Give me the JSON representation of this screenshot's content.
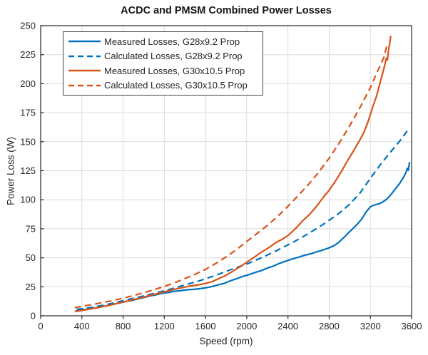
{
  "chart_data": {
    "type": "line",
    "title": "ACDC and PMSM Combined Power Losses",
    "xlabel": "Speed (rpm)",
    "ylabel": "Power Loss (W)",
    "xlim": [
      0,
      3600
    ],
    "ylim": [
      0,
      250
    ],
    "xticks": [
      0,
      400,
      800,
      1200,
      1600,
      2000,
      2400,
      2800,
      3200,
      3600
    ],
    "yticks": [
      0,
      25,
      50,
      75,
      100,
      125,
      150,
      175,
      200,
      225,
      250
    ],
    "grid": true,
    "legend_position": "top-left",
    "colors": {
      "axis": "#262626",
      "grid": "#dbdbdb",
      "background": "#ffffff",
      "blue": "#0072BD",
      "orange": "#D95319"
    },
    "series": [
      {
        "name": "Measured Losses, G28x9.2 Prop",
        "color": "#0072BD",
        "style": "solid",
        "points": [
          [
            340,
            4.2
          ],
          [
            400,
            5
          ],
          [
            460,
            5.9
          ],
          [
            520,
            6.6
          ],
          [
            580,
            7.7
          ],
          [
            640,
            8.5
          ],
          [
            700,
            9.9
          ],
          [
            760,
            10.9
          ],
          [
            820,
            12.3
          ],
          [
            880,
            13.1
          ],
          [
            940,
            14.5
          ],
          [
            1000,
            15.7
          ],
          [
            1060,
            17.1
          ],
          [
            1120,
            18.1
          ],
          [
            1180,
            19.5
          ],
          [
            1240,
            20.1
          ],
          [
            1300,
            21.1
          ],
          [
            1360,
            21.7
          ],
          [
            1420,
            22.4
          ],
          [
            1480,
            22.7
          ],
          [
            1540,
            23.3
          ],
          [
            1600,
            24.1
          ],
          [
            1660,
            25.1
          ],
          [
            1720,
            26.6
          ],
          [
            1780,
            27.9
          ],
          [
            1840,
            30.1
          ],
          [
            1900,
            31.9
          ],
          [
            1960,
            33.9
          ],
          [
            2020,
            35.4
          ],
          [
            2080,
            37.3
          ],
          [
            2140,
            38.9
          ],
          [
            2200,
            41.1
          ],
          [
            2260,
            42.9
          ],
          [
            2320,
            45.3
          ],
          [
            2380,
            47.1
          ],
          [
            2440,
            48.9
          ],
          [
            2500,
            50.4
          ],
          [
            2560,
            52.1
          ],
          [
            2620,
            53.4
          ],
          [
            2680,
            55.1
          ],
          [
            2740,
            56.7
          ],
          [
            2800,
            58.6
          ],
          [
            2840,
            60.1
          ],
          [
            2880,
            62.4
          ],
          [
            2920,
            65.6
          ],
          [
            2960,
            68.9
          ],
          [
            3000,
            72.6
          ],
          [
            3040,
            75.9
          ],
          [
            3080,
            79.6
          ],
          [
            3120,
            83.9
          ],
          [
            3160,
            89.6
          ],
          [
            3200,
            93.9
          ],
          [
            3240,
            95.6
          ],
          [
            3280,
            96.4
          ],
          [
            3320,
            98.1
          ],
          [
            3360,
            100.6
          ],
          [
            3400,
            104.4
          ],
          [
            3440,
            109.1
          ],
          [
            3480,
            113.6
          ],
          [
            3520,
            119.1
          ],
          [
            3545,
            123.4
          ],
          [
            3558,
            127.1
          ],
          [
            3568,
            125.3
          ],
          [
            3580,
            132.6
          ]
        ]
      },
      {
        "name": "Calculated Losses, G28x9.2 Prop",
        "color": "#0072BD",
        "style": "dashed",
        "points": [
          [
            350,
            5.5
          ],
          [
            500,
            7.3
          ],
          [
            650,
            9.8
          ],
          [
            800,
            13
          ],
          [
            950,
            16.1
          ],
          [
            1100,
            19.3
          ],
          [
            1250,
            22.8
          ],
          [
            1400,
            26.6
          ],
          [
            1550,
            30.4
          ],
          [
            1700,
            34.9
          ],
          [
            1850,
            39.9
          ],
          [
            2000,
            44.6
          ],
          [
            2150,
            50.3
          ],
          [
            2300,
            56.6
          ],
          [
            2450,
            63.4
          ],
          [
            2600,
            70.9
          ],
          [
            2750,
            79.2
          ],
          [
            2900,
            88.6
          ],
          [
            3000,
            96.2
          ],
          [
            3100,
            105.9
          ],
          [
            3200,
            118.4
          ],
          [
            3300,
            130.6
          ],
          [
            3400,
            141.6
          ],
          [
            3500,
            152.3
          ],
          [
            3570,
            160.8
          ]
        ]
      },
      {
        "name": "Measured Losses, G30x10.5 Prop",
        "color": "#D95319",
        "style": "solid",
        "points": [
          [
            330,
            3.6
          ],
          [
            400,
            4.6
          ],
          [
            470,
            5.7
          ],
          [
            540,
            6.7
          ],
          [
            610,
            8.1
          ],
          [
            680,
            9.3
          ],
          [
            750,
            10.9
          ],
          [
            820,
            12.1
          ],
          [
            890,
            13.9
          ],
          [
            960,
            15.1
          ],
          [
            1030,
            16.9
          ],
          [
            1100,
            18.3
          ],
          [
            1170,
            20.1
          ],
          [
            1240,
            21.5
          ],
          [
            1310,
            23.1
          ],
          [
            1380,
            24.3
          ],
          [
            1450,
            25.7
          ],
          [
            1520,
            26.5
          ],
          [
            1590,
            27.7
          ],
          [
            1660,
            29.3
          ],
          [
            1730,
            32.1
          ],
          [
            1800,
            34.9
          ],
          [
            1870,
            38.7
          ],
          [
            1940,
            42.5
          ],
          [
            2000,
            46.1
          ],
          [
            2070,
            50.3
          ],
          [
            2140,
            54.7
          ],
          [
            2210,
            58.5
          ],
          [
            2280,
            62.9
          ],
          [
            2350,
            66.3
          ],
          [
            2400,
            69.1
          ],
          [
            2470,
            74.9
          ],
          [
            2540,
            81.6
          ],
          [
            2610,
            87.4
          ],
          [
            2680,
            94.6
          ],
          [
            2750,
            102.9
          ],
          [
            2800,
            108.1
          ],
          [
            2860,
            115.9
          ],
          [
            2920,
            124.6
          ],
          [
            2980,
            133.9
          ],
          [
            3040,
            142.6
          ],
          [
            3100,
            151.9
          ],
          [
            3140,
            158.6
          ],
          [
            3180,
            167.9
          ],
          [
            3220,
            179.1
          ],
          [
            3260,
            189.4
          ],
          [
            3300,
            202.9
          ],
          [
            3330,
            212.6
          ],
          [
            3355,
            221.9
          ],
          [
            3365,
            220.4
          ],
          [
            3378,
            229.6
          ],
          [
            3390,
            236.1
          ],
          [
            3398,
            241.3
          ]
        ]
      },
      {
        "name": "Calculated Losses, G30x10.5 Prop",
        "color": "#D95319",
        "style": "dashed",
        "points": [
          [
            330,
            7
          ],
          [
            500,
            9.7
          ],
          [
            700,
            13.1
          ],
          [
            900,
            17.4
          ],
          [
            1100,
            22.4
          ],
          [
            1300,
            28.4
          ],
          [
            1500,
            35.8
          ],
          [
            1600,
            40
          ],
          [
            1700,
            45.2
          ],
          [
            1800,
            50.8
          ],
          [
            1900,
            57
          ],
          [
            2000,
            64.1
          ],
          [
            2100,
            70.9
          ],
          [
            2200,
            77.8
          ],
          [
            2300,
            85.6
          ],
          [
            2400,
            94.4
          ],
          [
            2500,
            103.6
          ],
          [
            2600,
            113.2
          ],
          [
            2700,
            123.9
          ],
          [
            2800,
            135.8
          ],
          [
            2900,
            149.2
          ],
          [
            3000,
            163.8
          ],
          [
            3100,
            179.6
          ],
          [
            3200,
            196.6
          ],
          [
            3270,
            210.9
          ],
          [
            3330,
            222.4
          ],
          [
            3365,
            234.6
          ]
        ]
      }
    ]
  }
}
